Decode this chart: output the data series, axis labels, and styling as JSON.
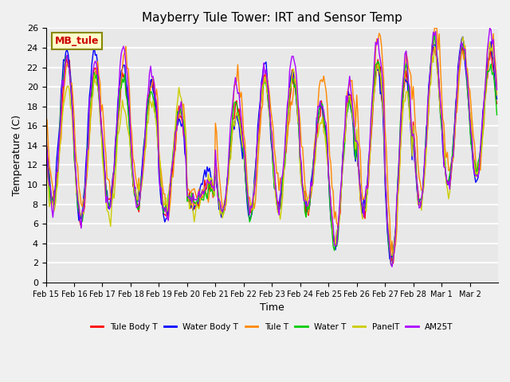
{
  "title": "Mayberry Tule Tower: IRT and Sensor Temp",
  "ylabel": "Temperature (C)",
  "xlabel": "Time",
  "annotation": "MB_tule",
  "ylim": [
    0,
    26
  ],
  "yticks": [
    0,
    2,
    4,
    6,
    8,
    10,
    12,
    14,
    16,
    18,
    20,
    22,
    24,
    26
  ],
  "xtick_labels": [
    "Feb 15",
    "Feb 16",
    "Feb 17",
    "Feb 18",
    "Feb 19",
    "Feb 20",
    "Feb 21",
    "Feb 22",
    "Feb 23",
    "Feb 24",
    "Feb 25",
    "Feb 26",
    "Feb 27",
    "Feb 28",
    "Mar 1",
    "Mar 2"
  ],
  "series": {
    "Tule Body T": {
      "color": "#ff0000",
      "lw": 1.0
    },
    "Water Body T": {
      "color": "#0000ff",
      "lw": 1.0
    },
    "Tule T": {
      "color": "#ff8800",
      "lw": 1.0
    },
    "Water T": {
      "color": "#00cc00",
      "lw": 1.0
    },
    "PanelT": {
      "color": "#cccc00",
      "lw": 1.0
    },
    "AM25T": {
      "color": "#aa00ff",
      "lw": 1.0
    }
  },
  "legend_order": [
    "Tule Body T",
    "Water Body T",
    "Tule T",
    "Water T",
    "PanelT",
    "AM25T"
  ],
  "background_color": "#e8e8e8",
  "grid_color": "#ffffff",
  "annotation_bg": "#ffffcc",
  "annotation_text_color": "#cc0000",
  "fig_bg": "#f0f0f0"
}
